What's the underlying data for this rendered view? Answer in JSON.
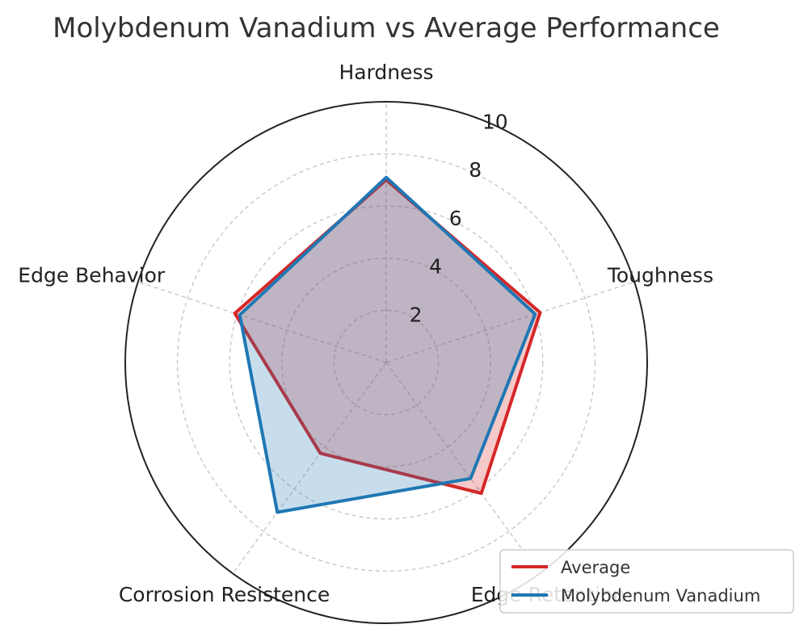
{
  "chart_data": {
    "type": "radar",
    "title": "Molybdenum Vanadium vs Average Performance",
    "categories": [
      "Hardness",
      "Toughness",
      "Edge Retention",
      "Corrosion Resistence",
      "Edge Behavior"
    ],
    "rlim": [
      0,
      10
    ],
    "rticks": [
      "2",
      "4",
      "6",
      "8",
      "10"
    ],
    "grid": true,
    "legend_position": "bottom-right",
    "series": [
      {
        "name": "Average",
        "values": [
          7.0,
          6.2,
          6.2,
          4.3,
          6.1
        ],
        "color": "#d62728"
      },
      {
        "name": "Molybdenum Vanadium",
        "values": [
          7.1,
          6.0,
          5.5,
          7.1,
          5.9
        ],
        "color": "#1f77b4"
      }
    ]
  }
}
